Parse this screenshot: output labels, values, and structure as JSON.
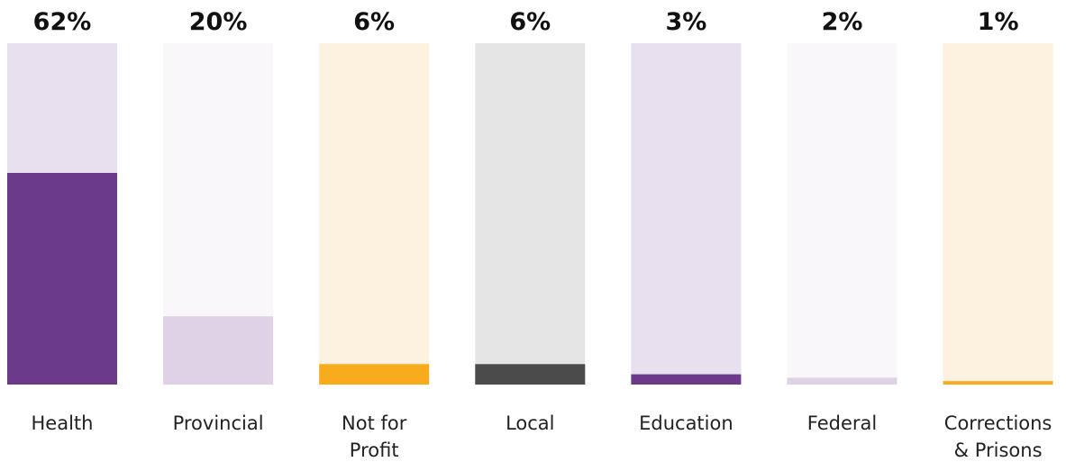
{
  "chart_data": {
    "type": "bar",
    "categories": [
      "Health",
      "Provincial",
      "Not for Profit",
      "Local",
      "Education",
      "Federal",
      "Corrections & Prisons"
    ],
    "category_labels": [
      [
        "Health"
      ],
      [
        "Provincial"
      ],
      [
        "Not for",
        "Profit"
      ],
      [
        "Local"
      ],
      [
        "Education"
      ],
      [
        "Federal"
      ],
      [
        "Corrections",
        "& Prisons"
      ]
    ],
    "values": [
      62,
      20,
      6,
      6,
      3,
      2,
      1
    ],
    "value_labels": [
      "62%",
      "20%",
      "6%",
      "6%",
      "3%",
      "2%",
      "1%"
    ],
    "ylim": [
      0,
      100
    ],
    "unit": "%",
    "fill_colors": [
      "#6b3a8b",
      "#dfd1e6",
      "#f8ab1d",
      "#4b4b4d",
      "#6b3a8b",
      "#dfd1e6",
      "#f8ab1d"
    ],
    "track_colors": [
      "#e8e0ee",
      "#f9f7fa",
      "#fdf1df",
      "#e5e5e5",
      "#e8e0ee",
      "#f9f7fa",
      "#fdf1df"
    ]
  }
}
